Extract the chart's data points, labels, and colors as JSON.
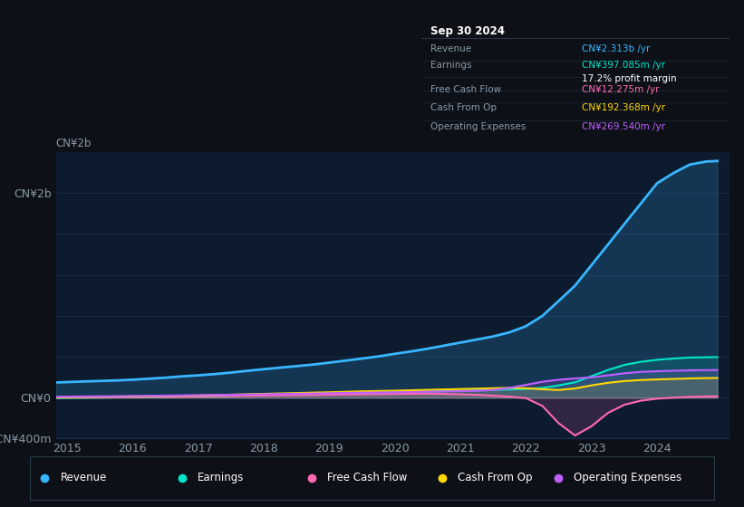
{
  "bg_color": "#0d1117",
  "plot_bg_color": "#0d1b2e",
  "grid_color": "#1e3050",
  "title_box": {
    "date": "Sep 30 2024",
    "rows": [
      {
        "label": "Revenue",
        "value": "CN¥2.313b /yr",
        "value_color": "#38b6ff"
      },
      {
        "label": "Earnings",
        "value": "CN¥397.085m /yr",
        "value_color": "#00e5c8"
      },
      {
        "label": "",
        "value": "17.2% profit margin",
        "value_color": "#ffffff"
      },
      {
        "label": "Free Cash Flow",
        "value": "CN¥12.275m /yr",
        "value_color": "#ff69b4"
      },
      {
        "label": "Cash From Op",
        "value": "CN¥192.368m /yr",
        "value_color": "#ffd700"
      },
      {
        "label": "Operating Expenses",
        "value": "CN¥269.540m /yr",
        "value_color": "#bf5fff"
      }
    ]
  },
  "ylim": [
    -400,
    2400
  ],
  "ytick_shown": [
    "-CN¥400m",
    "CN¥0",
    "CN¥2b"
  ],
  "ytick_vals": [
    -400,
    0,
    2000
  ],
  "grid_lines": [
    -400,
    0,
    400,
    800,
    1200,
    1600,
    2000
  ],
  "xlim": [
    2014.83,
    2025.1
  ],
  "xtick_labels": [
    "2015",
    "2016",
    "2017",
    "2018",
    "2019",
    "2020",
    "2021",
    "2022",
    "2023",
    "2024"
  ],
  "xtick_positions": [
    2015,
    2016,
    2017,
    2018,
    2019,
    2020,
    2021,
    2022,
    2023,
    2024
  ],
  "legend": [
    {
      "label": "Revenue",
      "color": "#38b6ff"
    },
    {
      "label": "Earnings",
      "color": "#00e5c8"
    },
    {
      "label": "Free Cash Flow",
      "color": "#ff69b4"
    },
    {
      "label": "Cash From Op",
      "color": "#ffd700"
    },
    {
      "label": "Operating Expenses",
      "color": "#bf5fff"
    }
  ],
  "series": {
    "years": [
      2014.83,
      2015.0,
      2015.25,
      2015.5,
      2015.75,
      2016.0,
      2016.25,
      2016.5,
      2016.75,
      2017.0,
      2017.25,
      2017.5,
      2017.75,
      2018.0,
      2018.25,
      2018.5,
      2018.75,
      2019.0,
      2019.25,
      2019.5,
      2019.75,
      2020.0,
      2020.25,
      2020.5,
      2020.75,
      2021.0,
      2021.25,
      2021.5,
      2021.75,
      2022.0,
      2022.25,
      2022.5,
      2022.75,
      2023.0,
      2023.25,
      2023.5,
      2023.75,
      2024.0,
      2024.25,
      2024.5,
      2024.75,
      2024.92
    ],
    "revenue": [
      148,
      152,
      158,
      163,
      168,
      175,
      185,
      195,
      208,
      218,
      230,
      245,
      262,
      278,
      293,
      308,
      323,
      342,
      362,
      382,
      403,
      428,
      452,
      478,
      508,
      538,
      568,
      598,
      638,
      698,
      798,
      945,
      1095,
      1295,
      1495,
      1695,
      1895,
      2095,
      2195,
      2278,
      2308,
      2313
    ],
    "earnings": [
      -5,
      -3,
      -2,
      0,
      2,
      4,
      6,
      8,
      10,
      12,
      15,
      18,
      22,
      26,
      30,
      34,
      38,
      42,
      46,
      48,
      50,
      52,
      56,
      60,
      64,
      68,
      72,
      76,
      80,
      85,
      95,
      120,
      150,
      210,
      270,
      320,
      350,
      370,
      382,
      392,
      395,
      397
    ],
    "free_cash_flow": [
      0,
      1,
      2,
      3,
      4,
      5,
      7,
      8,
      10,
      12,
      14,
      16,
      18,
      20,
      22,
      24,
      26,
      28,
      30,
      32,
      33,
      35,
      37,
      38,
      36,
      33,
      28,
      20,
      10,
      -5,
      -80,
      -250,
      -370,
      -280,
      -150,
      -70,
      -30,
      -10,
      0,
      8,
      12,
      12
    ],
    "cash_from_op": [
      3,
      5,
      7,
      9,
      11,
      13,
      15,
      17,
      19,
      21,
      25,
      29,
      33,
      37,
      41,
      45,
      49,
      53,
      57,
      62,
      65,
      68,
      72,
      76,
      80,
      84,
      88,
      92,
      96,
      92,
      82,
      75,
      90,
      120,
      145,
      162,
      172,
      178,
      183,
      188,
      191,
      192
    ],
    "operating_expenses": [
      8,
      10,
      12,
      13,
      14,
      16,
      18,
      20,
      22,
      24,
      26,
      28,
      30,
      33,
      36,
      38,
      40,
      43,
      46,
      48,
      50,
      52,
      55,
      57,
      60,
      63,
      67,
      75,
      95,
      125,
      155,
      175,
      188,
      198,
      218,
      238,
      252,
      258,
      263,
      267,
      269,
      270
    ]
  }
}
